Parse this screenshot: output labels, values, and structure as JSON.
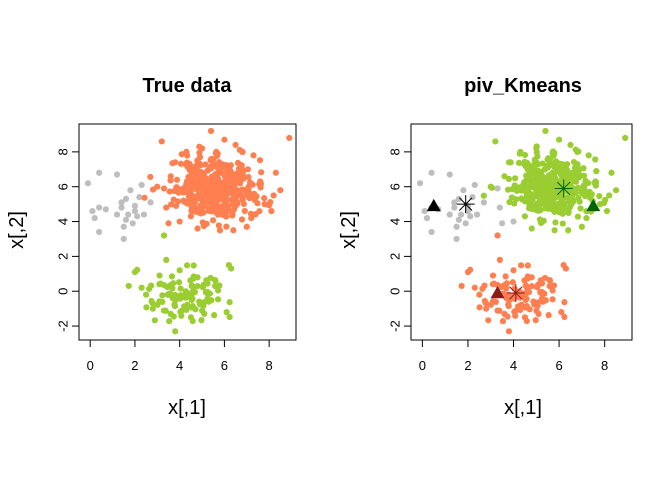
{
  "chart_data": [
    {
      "type": "scatter",
      "title": "True data",
      "xlabel": "x[,1]",
      "ylabel": "x[,2]",
      "xlim": [
        -0.5,
        9.2
      ],
      "ylim": [
        -2.8,
        9.6
      ],
      "xticks": [
        0,
        2,
        4,
        6,
        8
      ],
      "yticks": [
        -2,
        0,
        2,
        4,
        6,
        8
      ],
      "xtick_labels": [
        "0",
        "2",
        "4",
        "6",
        "8"
      ],
      "ytick_labels": [
        "-2",
        "0",
        "2",
        "4",
        "6",
        "8"
      ],
      "grid": false,
      "series": [
        {
          "color": "#BEBEBE",
          "marker": "filled-circle",
          "points": [
            [
              -0.1,
              6.2
            ],
            [
              0.1,
              4.6
            ],
            [
              0.2,
              4.2
            ],
            [
              0.4,
              6.8
            ],
            [
              0.4,
              4.8
            ],
            [
              0.4,
              3.4
            ],
            [
              0.7,
              4.7
            ],
            [
              1.2,
              6.7
            ],
            [
              1.2,
              4.4
            ],
            [
              1.4,
              5.1
            ],
            [
              1.5,
              3.7
            ],
            [
              1.5,
              3.0
            ],
            [
              1.6,
              5.3
            ],
            [
              1.7,
              4.4
            ],
            [
              1.8,
              5.8
            ],
            [
              2.0,
              4.9
            ],
            [
              2.0,
              4.6
            ],
            [
              2.1,
              4.3
            ],
            [
              2.2,
              5.4
            ],
            [
              2.3,
              6.1
            ],
            [
              2.4,
              4.4
            ],
            [
              1.4,
              4.8
            ],
            [
              1.9,
              3.9
            ],
            [
              2.7,
              5.1
            ],
            [
              1.6,
              4.1
            ]
          ]
        },
        {
          "color": "#FF7F50",
          "marker": "filled-circle",
          "cluster_center": [
            5.6,
            5.9
          ],
          "cluster_sd": [
            0.95,
            0.85
          ],
          "cluster_size": 420,
          "points": [
            [
              3.2,
              8.6
            ],
            [
              3.5,
              3.9
            ],
            [
              3.3,
              5.9
            ],
            [
              3.6,
              6.6
            ],
            [
              3.0,
              6.0
            ],
            [
              4.0,
              4.0
            ],
            [
              4.3,
              8.0
            ],
            [
              5.0,
              8.2
            ],
            [
              5.4,
              9.2
            ],
            [
              6.0,
              8.7
            ],
            [
              6.5,
              8.4
            ],
            [
              7.3,
              7.8
            ],
            [
              7.6,
              6.3
            ],
            [
              8.2,
              5.5
            ],
            [
              8.1,
              4.6
            ],
            [
              8.9,
              8.8
            ],
            [
              7.0,
              3.7
            ],
            [
              6.4,
              3.5
            ],
            [
              5.8,
              3.5
            ],
            [
              4.8,
              3.6
            ],
            [
              7.8,
              5.0
            ],
            [
              8.5,
              5.8
            ],
            [
              3.8,
              7.4
            ],
            [
              6.8,
              8.0
            ],
            [
              4.5,
              4.3
            ],
            [
              7.2,
              4.2
            ],
            [
              3.4,
              4.8
            ],
            [
              8.3,
              6.8
            ]
          ]
        },
        {
          "color": "#9ACD32",
          "marker": "filled-circle",
          "cluster_center": [
            4.3,
            -0.2
          ],
          "cluster_sd": [
            0.85,
            0.7
          ],
          "cluster_size": 100,
          "points": [
            [
              3.3,
              3.2
            ],
            [
              3.4,
              1.8
            ],
            [
              2.0,
              1.1
            ],
            [
              2.5,
              -0.2
            ],
            [
              2.3,
              0.2
            ],
            [
              6.2,
              1.5
            ],
            [
              6.3,
              1.3
            ],
            [
              3.8,
              -2.3
            ],
            [
              3.6,
              -1.3
            ],
            [
              4.5,
              -1.5
            ],
            [
              5.1,
              -1.3
            ],
            [
              6.1,
              -1.2
            ],
            [
              5.6,
              0.6
            ],
            [
              3.1,
              0.9
            ],
            [
              4.0,
              1.2
            ],
            [
              4.8,
              0.8
            ],
            [
              5.3,
              -0.6
            ],
            [
              2.8,
              -1.0
            ]
          ]
        }
      ]
    },
    {
      "type": "scatter",
      "title": "piv_Kmeans",
      "xlabel": "x[,1]",
      "ylabel": "x[,2]",
      "xlim": [
        -0.5,
        9.2
      ],
      "ylim": [
        -2.8,
        9.6
      ],
      "xticks": [
        0,
        2,
        4,
        6,
        8
      ],
      "yticks": [
        -2,
        0,
        2,
        4,
        6,
        8
      ],
      "xtick_labels": [
        "0",
        "2",
        "4",
        "6",
        "8"
      ],
      "ytick_labels": [
        "-2",
        "0",
        "2",
        "4",
        "6",
        "8"
      ],
      "grid": false,
      "series": [
        {
          "color": "#BEBEBE",
          "marker": "filled-circle",
          "points": [
            [
              -0.1,
              6.2
            ],
            [
              0.1,
              4.6
            ],
            [
              0.2,
              4.2
            ],
            [
              0.4,
              6.8
            ],
            [
              0.4,
              4.8
            ],
            [
              0.4,
              3.4
            ],
            [
              0.7,
              4.7
            ],
            [
              1.2,
              6.7
            ],
            [
              1.2,
              4.4
            ],
            [
              1.4,
              5.1
            ],
            [
              1.5,
              3.7
            ],
            [
              1.5,
              3.0
            ],
            [
              1.6,
              5.3
            ],
            [
              1.7,
              4.4
            ],
            [
              1.8,
              5.8
            ],
            [
              2.0,
              4.9
            ],
            [
              2.0,
              4.6
            ],
            [
              2.1,
              4.3
            ],
            [
              2.2,
              5.4
            ],
            [
              2.3,
              6.1
            ],
            [
              2.4,
              4.4
            ],
            [
              1.4,
              4.8
            ],
            [
              1.9,
              3.9
            ],
            [
              2.7,
              5.1
            ],
            [
              1.6,
              4.1
            ],
            [
              3.4,
              4.8
            ],
            [
              3.5,
              3.9
            ],
            [
              4.0,
              4.0
            ],
            [
              3.3,
              5.9
            ]
          ]
        },
        {
          "color": "#9ACD32",
          "marker": "filled-circle",
          "cluster_center": [
            5.7,
            6.0
          ],
          "cluster_sd": [
            0.9,
            0.82
          ],
          "cluster_size": 410,
          "points": [
            [
              3.2,
              8.6
            ],
            [
              3.6,
              6.6
            ],
            [
              3.0,
              6.0
            ],
            [
              4.3,
              8.0
            ],
            [
              5.0,
              8.2
            ],
            [
              5.4,
              9.2
            ],
            [
              6.0,
              8.7
            ],
            [
              6.5,
              8.4
            ],
            [
              7.3,
              7.8
            ],
            [
              7.6,
              6.3
            ],
            [
              8.2,
              5.5
            ],
            [
              8.1,
              4.6
            ],
            [
              8.9,
              8.8
            ],
            [
              7.0,
              3.7
            ],
            [
              6.4,
              3.5
            ],
            [
              5.8,
              3.5
            ],
            [
              4.8,
              3.6
            ],
            [
              7.8,
              5.0
            ],
            [
              8.5,
              5.8
            ],
            [
              3.8,
              7.4
            ],
            [
              6.8,
              8.0
            ],
            [
              4.5,
              4.3
            ],
            [
              7.2,
              4.2
            ],
            [
              8.3,
              6.8
            ]
          ]
        },
        {
          "color": "#FF7F50",
          "marker": "filled-circle",
          "cluster_center": [
            4.3,
            -0.2
          ],
          "cluster_sd": [
            0.85,
            0.7
          ],
          "cluster_size": 100,
          "points": [
            [
              3.3,
              3.2
            ],
            [
              3.4,
              1.8
            ],
            [
              2.0,
              1.1
            ],
            [
              2.5,
              -0.2
            ],
            [
              2.3,
              0.2
            ],
            [
              6.2,
              1.5
            ],
            [
              6.3,
              1.3
            ],
            [
              3.8,
              -2.3
            ],
            [
              3.6,
              -1.3
            ],
            [
              4.5,
              -1.5
            ],
            [
              5.1,
              -1.3
            ],
            [
              6.1,
              -1.2
            ],
            [
              5.6,
              0.6
            ],
            [
              3.1,
              0.9
            ],
            [
              4.0,
              1.2
            ],
            [
              4.8,
              0.8
            ],
            [
              5.3,
              -0.6
            ],
            [
              2.8,
              -1.0
            ]
          ]
        }
      ],
      "markers": [
        {
          "shape": "triangle",
          "color": "#000000",
          "x": 0.5,
          "y": 4.9
        },
        {
          "shape": "asterisk",
          "color": "#000000",
          "x": 1.9,
          "y": 5.0
        },
        {
          "shape": "triangle",
          "color": "#006400",
          "x": 7.5,
          "y": 4.9
        },
        {
          "shape": "asterisk",
          "color": "#006400",
          "x": 6.2,
          "y": 5.9
        },
        {
          "shape": "triangle",
          "color": "#8B1A1A",
          "x": 3.3,
          "y": -0.1
        },
        {
          "shape": "asterisk",
          "color": "#8B1A1A",
          "x": 4.1,
          "y": -0.1
        }
      ]
    }
  ]
}
